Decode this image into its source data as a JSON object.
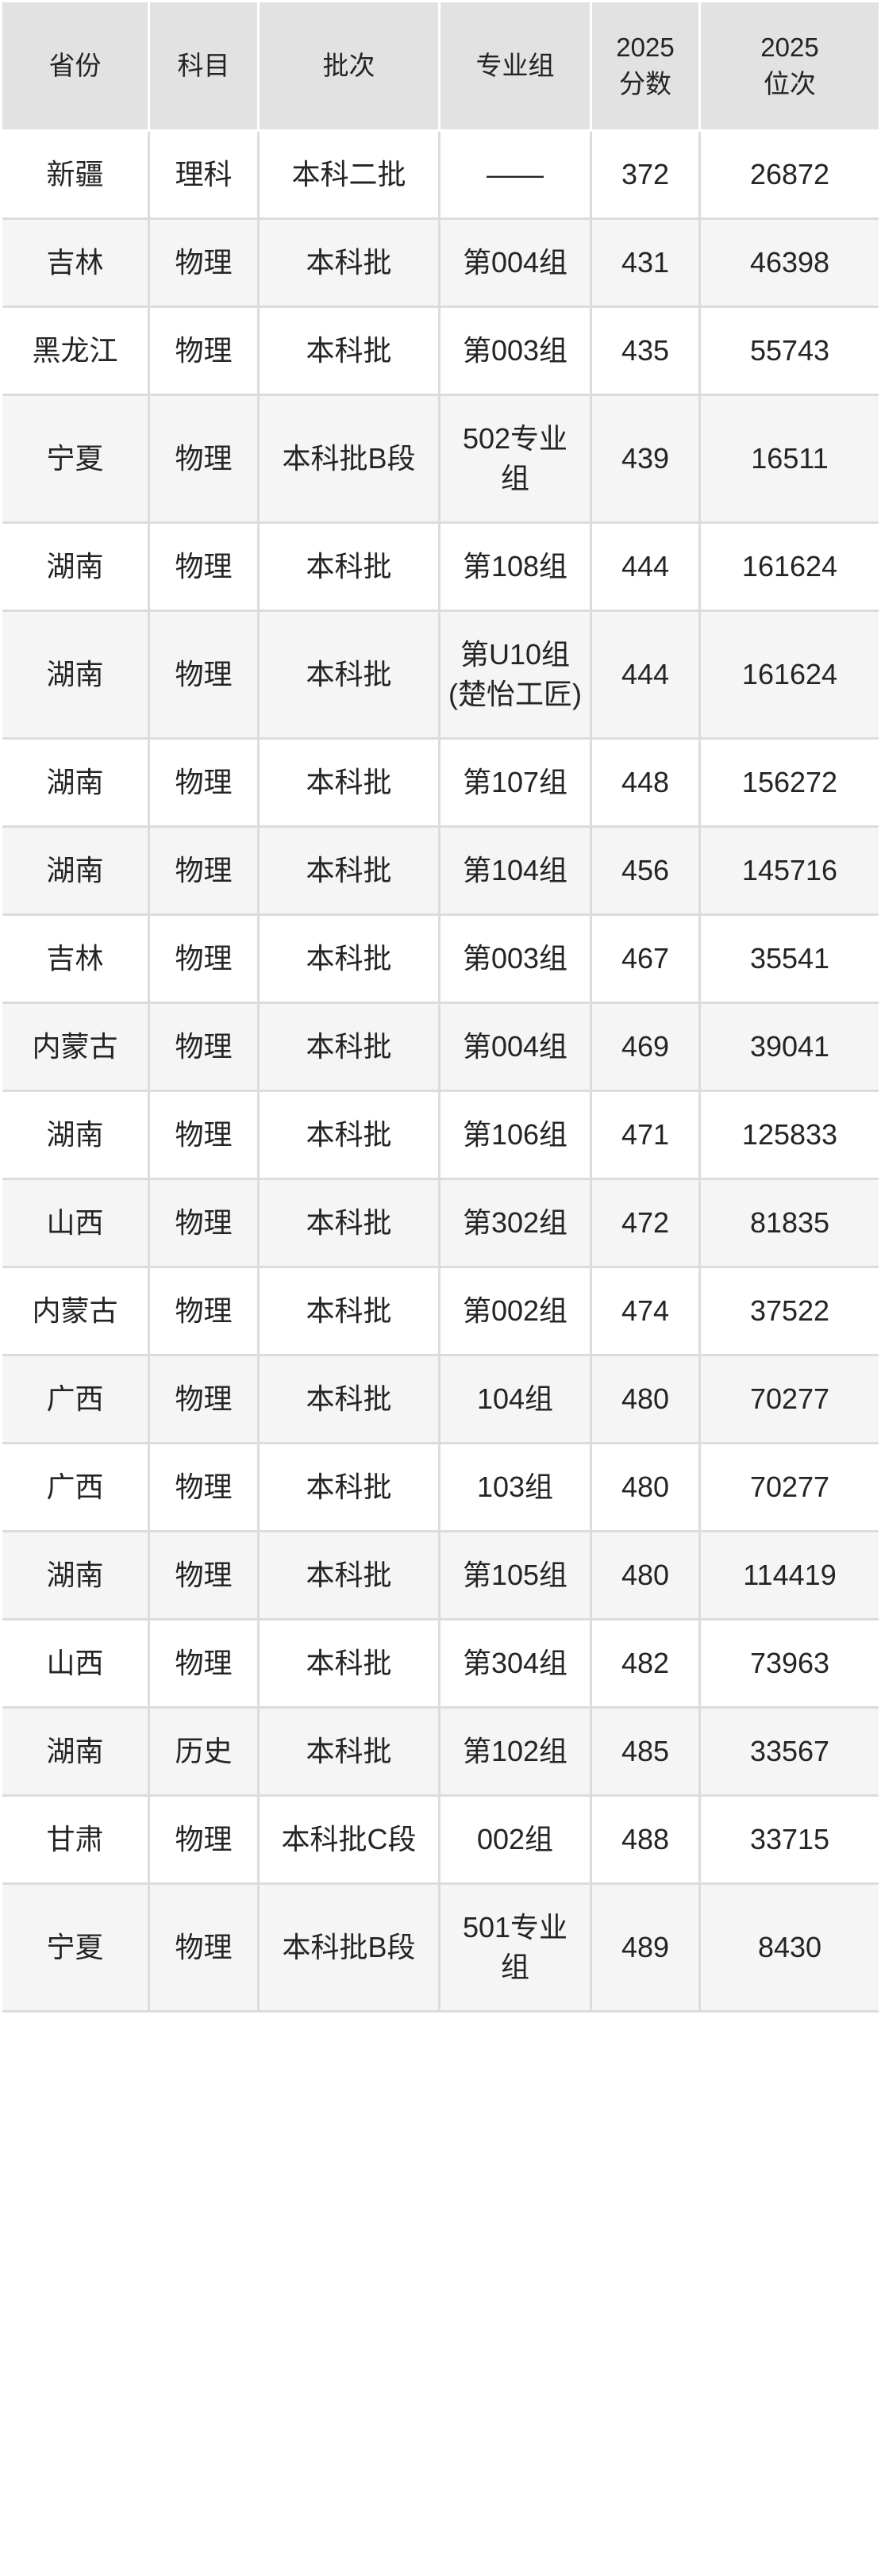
{
  "table": {
    "columns": [
      {
        "key": "province",
        "label": "省份"
      },
      {
        "key": "subject",
        "label": "科目"
      },
      {
        "key": "batch",
        "label": "批次"
      },
      {
        "key": "group",
        "label": "专业组"
      },
      {
        "key": "score",
        "label": "2025\n分数"
      },
      {
        "key": "rank",
        "label": "2025\n位次"
      }
    ],
    "rows": [
      {
        "province": "新疆",
        "subject": "理科",
        "batch": "本科二批",
        "group": "——",
        "score": "372",
        "rank": "26872"
      },
      {
        "province": "吉林",
        "subject": "物理",
        "batch": "本科批",
        "group": "第004组",
        "score": "431",
        "rank": "46398"
      },
      {
        "province": "黑龙江",
        "subject": "物理",
        "batch": "本科批",
        "group": "第003组",
        "score": "435",
        "rank": "55743"
      },
      {
        "province": "宁夏",
        "subject": "物理",
        "batch": "本科批B段",
        "group": "502专业组",
        "score": "439",
        "rank": "16511"
      },
      {
        "province": "湖南",
        "subject": "物理",
        "batch": "本科批",
        "group": "第108组",
        "score": "444",
        "rank": "161624"
      },
      {
        "province": "湖南",
        "subject": "物理",
        "batch": "本科批",
        "group": "第U10组(楚怡工匠)",
        "score": "444",
        "rank": "161624"
      },
      {
        "province": "湖南",
        "subject": "物理",
        "batch": "本科批",
        "group": "第107组",
        "score": "448",
        "rank": "156272"
      },
      {
        "province": "湖南",
        "subject": "物理",
        "batch": "本科批",
        "group": "第104组",
        "score": "456",
        "rank": "145716"
      },
      {
        "province": "吉林",
        "subject": "物理",
        "batch": "本科批",
        "group": "第003组",
        "score": "467",
        "rank": "35541"
      },
      {
        "province": "内蒙古",
        "subject": "物理",
        "batch": "本科批",
        "group": "第004组",
        "score": "469",
        "rank": "39041"
      },
      {
        "province": "湖南",
        "subject": "物理",
        "batch": "本科批",
        "group": "第106组",
        "score": "471",
        "rank": "125833"
      },
      {
        "province": "山西",
        "subject": "物理",
        "batch": "本科批",
        "group": "第302组",
        "score": "472",
        "rank": "81835"
      },
      {
        "province": "内蒙古",
        "subject": "物理",
        "batch": "本科批",
        "group": "第002组",
        "score": "474",
        "rank": "37522"
      },
      {
        "province": "广西",
        "subject": "物理",
        "batch": "本科批",
        "group": "104组",
        "score": "480",
        "rank": "70277"
      },
      {
        "province": "广西",
        "subject": "物理",
        "batch": "本科批",
        "group": "103组",
        "score": "480",
        "rank": "70277"
      },
      {
        "province": "湖南",
        "subject": "物理",
        "batch": "本科批",
        "group": "第105组",
        "score": "480",
        "rank": "114419"
      },
      {
        "province": "山西",
        "subject": "物理",
        "batch": "本科批",
        "group": "第304组",
        "score": "482",
        "rank": "73963"
      },
      {
        "province": "湖南",
        "subject": "历史",
        "batch": "本科批",
        "group": "第102组",
        "score": "485",
        "rank": "33567"
      },
      {
        "province": "甘肃",
        "subject": "物理",
        "batch": "本科批C段",
        "group": "002组",
        "score": "488",
        "rank": "33715"
      },
      {
        "province": "宁夏",
        "subject": "物理",
        "batch": "本科批B段",
        "group": "501专业组",
        "score": "489",
        "rank": "8430"
      }
    ],
    "colors": {
      "header_bg": "#e2e2e2",
      "row_bg": "#ffffff",
      "row_alt_bg": "#f5f5f6",
      "cell_border": "#dcdcdd",
      "header_gap": "#ffffff",
      "text": "#242424"
    }
  }
}
